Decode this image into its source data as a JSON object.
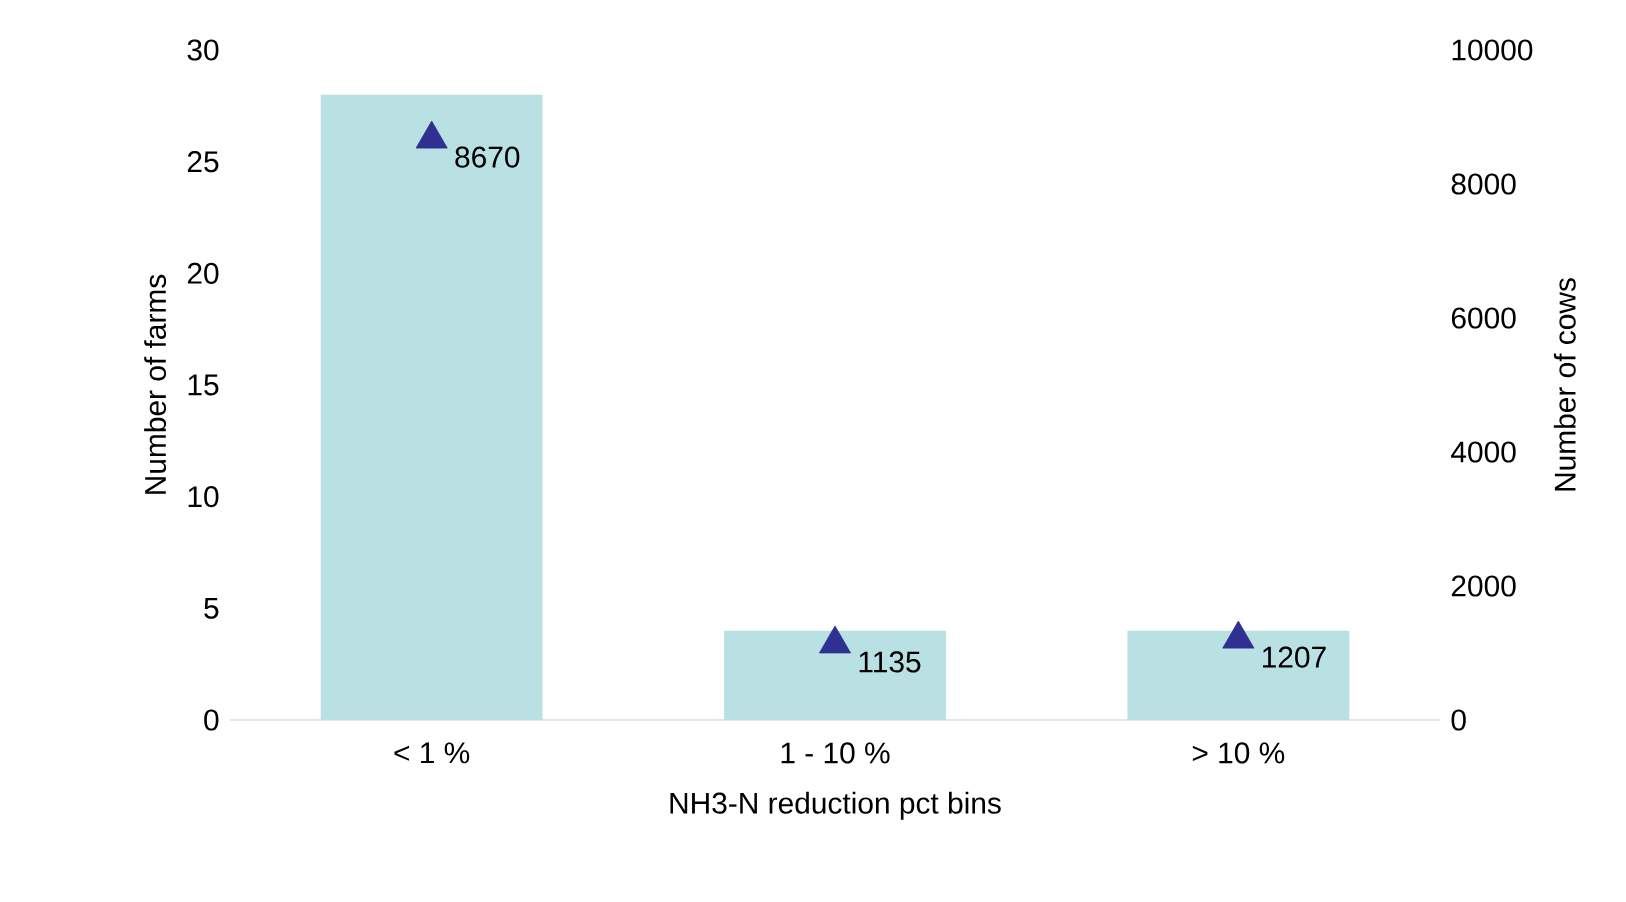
{
  "chart_data": {
    "type": "bar",
    "categories": [
      "< 1 %",
      "1 - 10 %",
      "> 10 %"
    ],
    "series": [
      {
        "color": "#b9e0e3",
        "values": [
          28,
          4,
          4
        ]
      },
      {
        "type": "scatter",
        "axis": "y2",
        "marker": "triangle",
        "color": "#2e3192",
        "values": [
          8670,
          1135,
          1207
        ],
        "value_labels": [
          "8670",
          "1135",
          "1207"
        ]
      }
    ],
    "xlabel": "NH3-N reduction pct bins",
    "ylabel": "Number of farms",
    "y2label": "Number of cows",
    "ylim": [
      0,
      30
    ],
    "yticks": [
      0,
      5,
      10,
      15,
      20,
      25,
      30
    ],
    "y2lim": [
      0,
      10000
    ],
    "y2ticks": [
      0,
      2000,
      4000,
      6000,
      8000,
      10000
    ]
  }
}
